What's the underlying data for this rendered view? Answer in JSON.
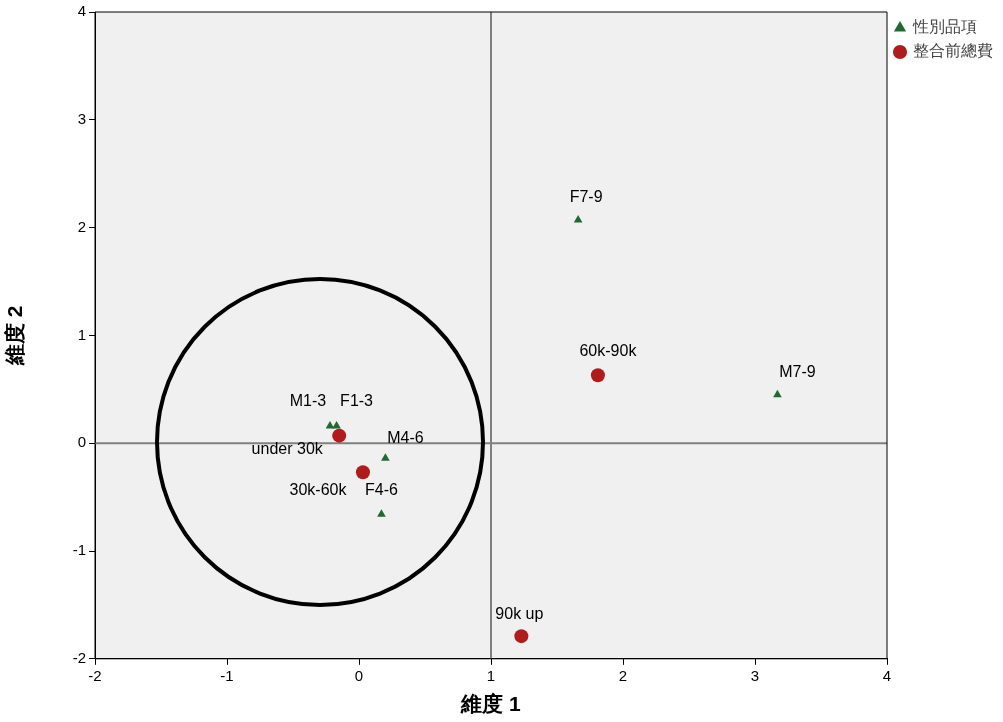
{
  "chart_data": {
    "type": "scatter",
    "xlabel": "維度 1",
    "ylabel": "維度 2",
    "xlim": [
      -2,
      4
    ],
    "xticks": [
      -2,
      -1,
      0,
      1,
      2,
      3,
      4
    ],
    "ylim": [
      -2,
      4
    ],
    "yticks": [
      -2,
      -1,
      0,
      1,
      2,
      3,
      4
    ],
    "grid": false,
    "legend": "top right",
    "series": [
      {
        "name": "性別品項",
        "color": "#1e6b32",
        "marker": "triangle",
        "x": [
          -0.22,
          -0.17,
          0.2,
          0.17,
          1.66,
          3.17
        ],
        "values": [
          0.16,
          0.16,
          -0.14,
          -0.66,
          2.07,
          0.45
        ]
      },
      {
        "name": "整合前總費",
        "color": "#b01c1c",
        "marker": "circle",
        "x": [
          -0.15,
          0.03,
          1.81,
          1.23
        ],
        "values": [
          0.07,
          -0.27,
          0.63,
          -1.79
        ]
      }
    ],
    "ref_lines": [
      {
        "axis": "x",
        "value": 1,
        "color": "#808080"
      },
      {
        "axis": "y",
        "value": 0,
        "color": "#808080"
      }
    ],
    "annotations": [
      {
        "text": "M1-3",
        "x": -0.22,
        "y": 0.16
      },
      {
        "text": "F1-3",
        "x": -0.17,
        "y": 0.16
      },
      {
        "text": "M4-6",
        "x": 0.2,
        "y": -0.14
      },
      {
        "text": "F4-6",
        "x": 0.17,
        "y": -0.66
      },
      {
        "text": "F7-9",
        "x": 1.66,
        "y": 2.07
      },
      {
        "text": "M7-9",
        "x": 3.17,
        "y": 0.45
      },
      {
        "text": "under 30k",
        "x": -0.15,
        "y": 0.07
      },
      {
        "text": "30k-60k",
        "x": 0.03,
        "y": -0.27
      },
      {
        "text": "60k-90k",
        "x": 1.81,
        "y": 0.63
      },
      {
        "text": "90k up",
        "x": 1.23,
        "y": -1.79
      }
    ]
  }
}
